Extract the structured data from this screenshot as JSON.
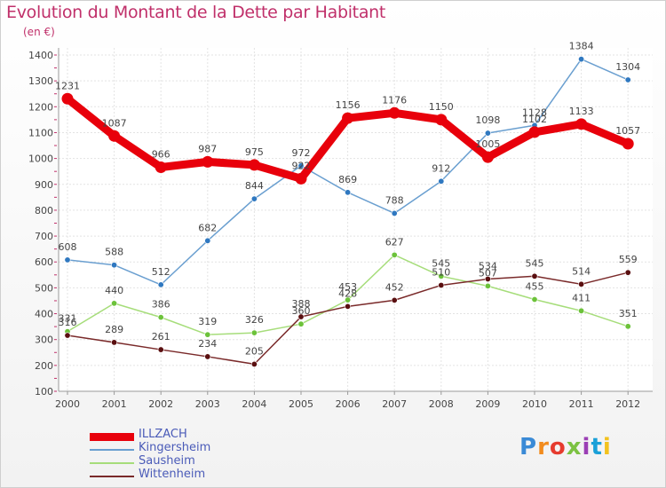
{
  "header": {
    "title": "Evolution du Montant de la Dette par Habitant",
    "unit": "(en €)"
  },
  "logo": {
    "text": "Proxiti",
    "colors": [
      "#3a8ad6",
      "#f28c1e",
      "#e63b2e",
      "#7cc242",
      "#9b3fb5",
      "#1aa0d8",
      "#f2c21e"
    ]
  },
  "chart_data": {
    "type": "line",
    "title": "Evolution du Montant de la Dette par Habitant",
    "subtitle": "(en €)",
    "x": [
      "2000",
      "2001",
      "2002",
      "2003",
      "2004",
      "2005",
      "2006",
      "2007",
      "2008",
      "2009",
      "2010",
      "2011",
      "2012"
    ],
    "ylim": [
      100,
      1400
    ],
    "yticks": [
      "100",
      "200",
      "300",
      "400",
      "500",
      "600",
      "700",
      "800",
      "900",
      "1000",
      "1100",
      "1200",
      "1300",
      "1400"
    ],
    "grid": true,
    "legend_position": "bottom-left",
    "series": [
      {
        "name": "ILLZACH",
        "color": "#e8000b",
        "emphasis": true,
        "values": [
          1231,
          1087,
          966,
          987,
          975,
          922,
          1156,
          1176,
          1150,
          1005,
          1102,
          1133,
          1057
        ]
      },
      {
        "name": "Kingersheim",
        "color": "#6a9fd0",
        "dot": "#2f78c0",
        "values": [
          608,
          588,
          512,
          682,
          844,
          972,
          869,
          788,
          912,
          1098,
          1128,
          1384,
          1304
        ]
      },
      {
        "name": "Sausheim",
        "color": "#a6dd7a",
        "dot": "#6cc23a",
        "values": [
          331,
          440,
          386,
          319,
          326,
          360,
          453,
          627,
          545,
          507,
          455,
          411,
          351
        ]
      },
      {
        "name": "Wittenheim",
        "color": "#7a2a2a",
        "dot": "#5a0f10",
        "values": [
          316,
          289,
          261,
          234,
          205,
          388,
          428,
          452,
          510,
          534,
          545,
          514,
          559
        ]
      }
    ]
  }
}
